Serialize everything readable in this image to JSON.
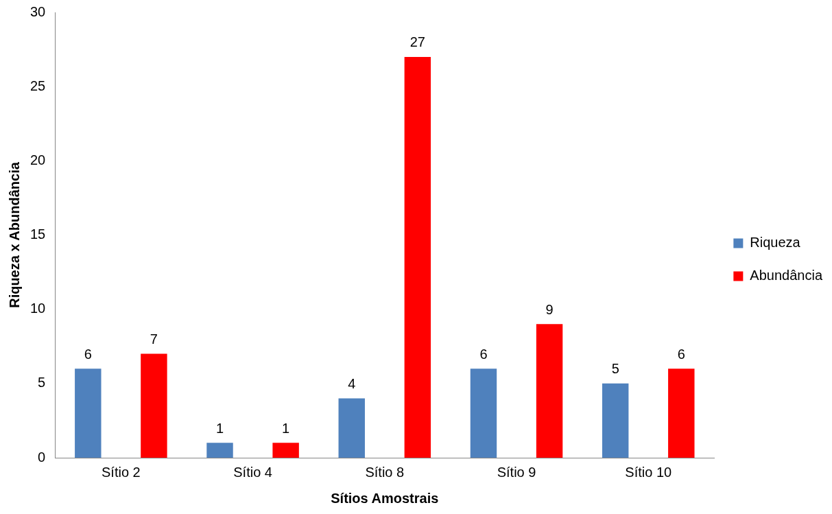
{
  "chart_data": {
    "type": "bar",
    "xlabel": "Sítios Amostrais",
    "ylabel": "Riqueza x Abundância",
    "categories": [
      "Sítio 2",
      "Sítio 4",
      "Sítio 8",
      "Sítio 9",
      "Sítio 10"
    ],
    "series": [
      {
        "name": "Riqueza",
        "color": "#4f81bd",
        "values": [
          6,
          1,
          4,
          6,
          5
        ]
      },
      {
        "name": "Abundância",
        "color": "#ff0000",
        "values": [
          7,
          1,
          27,
          9,
          6
        ]
      }
    ],
    "ylim": [
      0,
      30
    ],
    "yticks": [
      0,
      5,
      10,
      15,
      20,
      25,
      30
    ],
    "grid": false,
    "legend": "right",
    "data_labels": true
  }
}
